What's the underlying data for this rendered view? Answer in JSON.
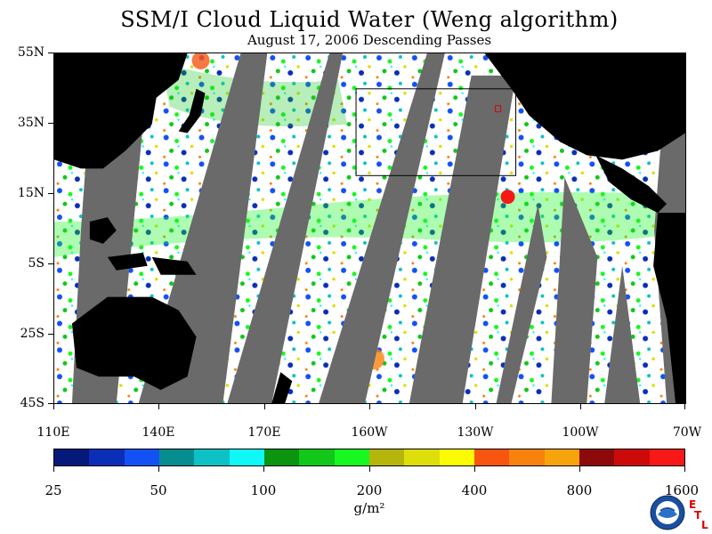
{
  "title": "SSM/I Cloud Liquid Water (Weng algorithm)",
  "subtitle": "August 17, 2006  Descending Passes",
  "latitude_labels": [
    "55N",
    "35N",
    "15N",
    "5S",
    "25S",
    "45S"
  ],
  "longitude_labels": [
    "110E",
    "140E",
    "170E",
    "160W",
    "130W",
    "100W",
    "70W"
  ],
  "colorbar": {
    "colors": [
      "#05197a",
      "#0a2fb6",
      "#1351f5",
      "#078d8f",
      "#0cc2c4",
      "#10f7f7",
      "#0a9410",
      "#10c71a",
      "#17f722",
      "#b5b50c",
      "#dede0a",
      "#fbfb05",
      "#f75510",
      "#f7820c",
      "#f7a40c",
      "#8c0a0a",
      "#cc0a0a",
      "#f71818"
    ],
    "tick_labels": [
      "25",
      "50",
      "100",
      "200",
      "400",
      "800",
      "1600"
    ],
    "units": "g/m²"
  },
  "logo": {
    "name": "NOAA",
    "etl_letters": [
      "E",
      "T",
      "L"
    ]
  },
  "map": {
    "land_color": "#000000",
    "no_data_color": "#6a6a6a",
    "clear_color": "#ffffff"
  }
}
